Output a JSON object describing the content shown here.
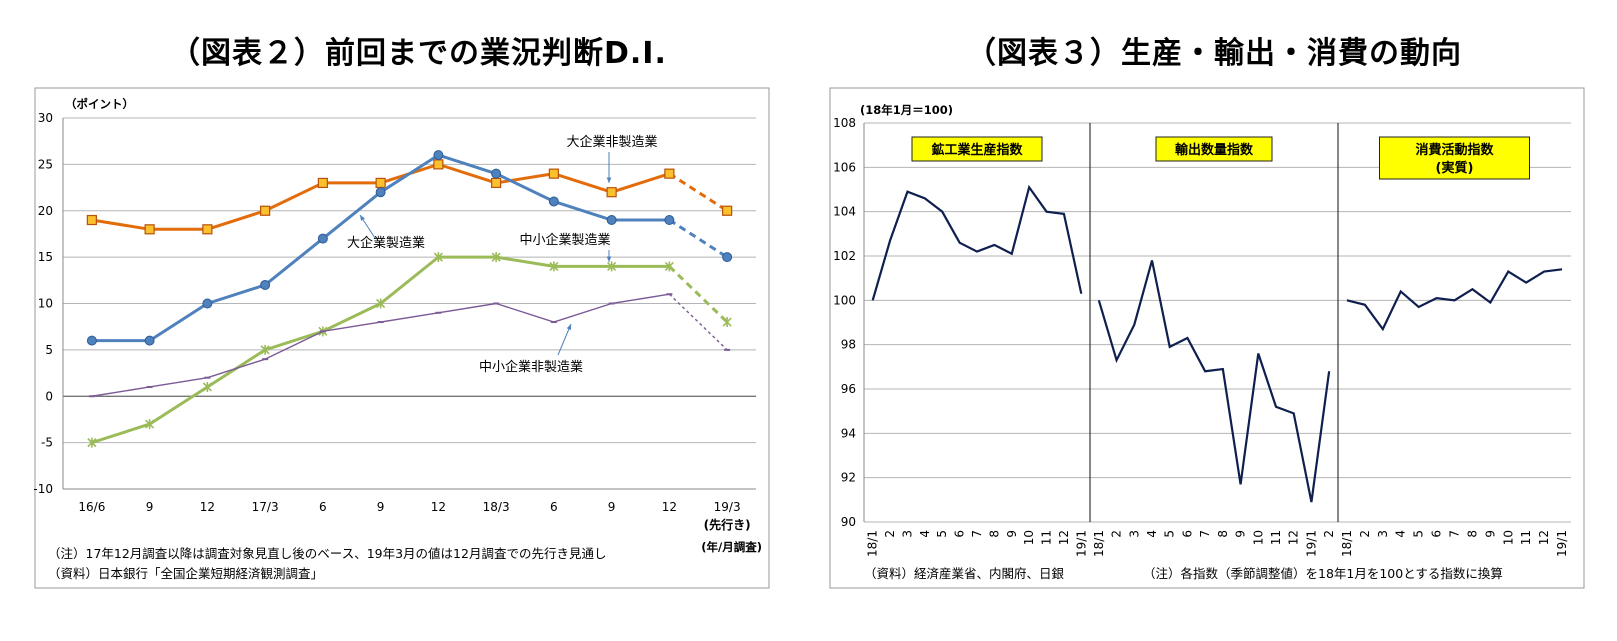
{
  "titles": {
    "left": "（図表２）前回までの業況判断D.I.",
    "right": "（図表３）生産・輸出・消費の動向"
  },
  "chart_data": [
    {
      "type": "line",
      "title": "（図表２）前回までの業況判断D.I.",
      "ylabel": "（ポイント）",
      "xlabel": "(年/月調査)",
      "ylim": [
        -10,
        30
      ],
      "yticks": [
        -10,
        -5,
        0,
        5,
        10,
        15,
        20,
        25,
        30
      ],
      "categories": [
        "16/6",
        "9",
        "12",
        "17/3",
        "6",
        "9",
        "12",
        "18/3",
        "6",
        "9",
        "12",
        "19/3"
      ],
      "category_sublabel": {
        "index": 11,
        "text": "(先行き)"
      },
      "grid": true,
      "series": [
        {
          "name": "大企業非製造業",
          "color": "#E36C0A",
          "marker": "square",
          "values": [
            19,
            18,
            18,
            20,
            23,
            23,
            25,
            23,
            24,
            22,
            24,
            20
          ],
          "forecast_from": 10
        },
        {
          "name": "大企業製造業",
          "color": "#4F81BD",
          "marker": "circle",
          "values": [
            6,
            6,
            10,
            12,
            17,
            22,
            26,
            24,
            21,
            19,
            19,
            15
          ],
          "forecast_from": 10
        },
        {
          "name": "中小企業製造業",
          "color": "#9BBB59",
          "marker": "x",
          "values": [
            -5,
            -3,
            1,
            5,
            7,
            10,
            15,
            15,
            14,
            14,
            14,
            8
          ],
          "forecast_from": 10
        },
        {
          "name": "中小企業非製造業",
          "color": "#7B5B96",
          "marker": "dash",
          "values": [
            0,
            1,
            2,
            4,
            7,
            8,
            9,
            10,
            8,
            10,
            11,
            5
          ],
          "forecast_from": 10
        }
      ],
      "notes": [
        "（注）17年12月調査以降は調査対象見直し後のベース、19年3月の値は12月調査での先行き見通し",
        "（資料）日本銀行「全国企業短期経済観測調査」"
      ]
    },
    {
      "type": "line",
      "title": "（図表３）生産・輸出・消費の動向",
      "ylabel": "(18年1月＝100)",
      "ylim": [
        90,
        108
      ],
      "yticks": [
        90,
        92,
        94,
        96,
        98,
        100,
        102,
        104,
        106,
        108
      ],
      "grid": true,
      "color": "#0F1F4F",
      "panels": [
        {
          "name": "鉱工業生産指数",
          "categories": [
            "18/1",
            "2",
            "3",
            "4",
            "5",
            "6",
            "7",
            "8",
            "9",
            "10",
            "11",
            "12",
            "19/1"
          ],
          "values": [
            100,
            102.7,
            104.9,
            104.6,
            104.0,
            102.6,
            102.2,
            102.5,
            102.1,
            105.1,
            104.0,
            103.9,
            100.3
          ]
        },
        {
          "name": "輸出数量指数",
          "categories": [
            "18/1",
            "2",
            "3",
            "4",
            "5",
            "6",
            "7",
            "8",
            "9",
            "10",
            "11",
            "12",
            "19/1",
            "2"
          ],
          "values": [
            100,
            97.3,
            98.9,
            101.8,
            97.9,
            98.3,
            96.8,
            96.9,
            91.7,
            97.6,
            95.2,
            94.9,
            90.9,
            96.8
          ]
        },
        {
          "name": "消費活動指数\n(実質)",
          "categories": [
            "18/1",
            "2",
            "3",
            "4",
            "5",
            "6",
            "7",
            "8",
            "9",
            "10",
            "11",
            "12",
            "19/1"
          ],
          "values": [
            100,
            99.8,
            98.7,
            100.4,
            99.7,
            100.1,
            100.0,
            100.5,
            99.9,
            101.3,
            100.8,
            101.3,
            101.4
          ]
        }
      ],
      "notes": [
        "（資料）経済産業省、内閣府、日銀",
        "（注）各指数（季節調整値）を18年1月を100とする指数に換算"
      ]
    }
  ]
}
